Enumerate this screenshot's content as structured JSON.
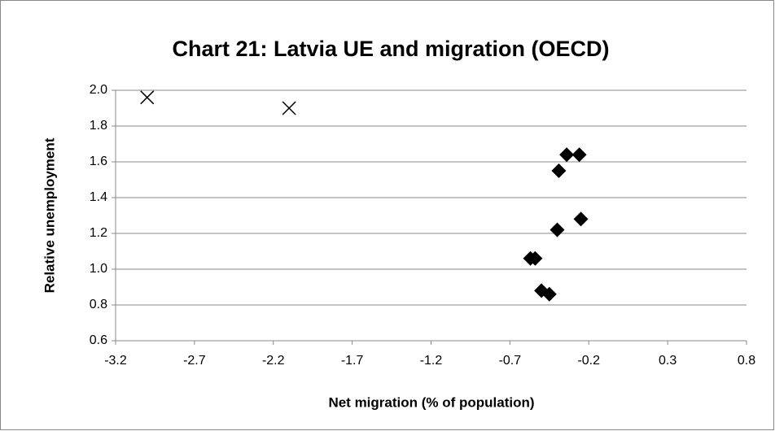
{
  "chart_data": {
    "type": "scatter",
    "title": "Chart 21: Latvia UE and migration (OECD)",
    "x_label": "Net migration (% of population)",
    "y_label": "Relative unemployment",
    "xlim": [
      -3.2,
      0.8
    ],
    "xticks": [
      -3.2,
      -2.7,
      -2.2,
      -1.7,
      -1.2,
      -0.7,
      -0.2,
      0.3,
      0.8
    ],
    "ylim": [
      0.6,
      2.0
    ],
    "yticks": [
      {
        "value": 0.6,
        "label": "0.6"
      },
      {
        "value": 0.8,
        "label": "0.8"
      },
      {
        "value": 1.0,
        "label": "1.0"
      },
      {
        "value": 1.2,
        "label": "1.2"
      },
      {
        "value": 1.4,
        "label": "1.4"
      },
      {
        "value": 1.6,
        "label": "1.6"
      },
      {
        "value": 1.8,
        "label": "1.8"
      },
      {
        "value": 2.0,
        "label": "2.0"
      }
    ],
    "grid": true,
    "series": [
      {
        "marker": "x",
        "color": "#000000",
        "x": [
          -3.0,
          -2.1
        ],
        "values": [
          1.96,
          1.9
        ]
      },
      {
        "marker": "diamond",
        "color": "#000000",
        "x": [
          -0.34,
          -0.26,
          -0.39,
          -0.25,
          -0.4,
          -0.57,
          -0.54,
          -0.5,
          -0.45
        ],
        "values": [
          1.64,
          1.64,
          1.55,
          1.28,
          1.22,
          1.06,
          1.06,
          0.88,
          0.86
        ]
      }
    ]
  }
}
